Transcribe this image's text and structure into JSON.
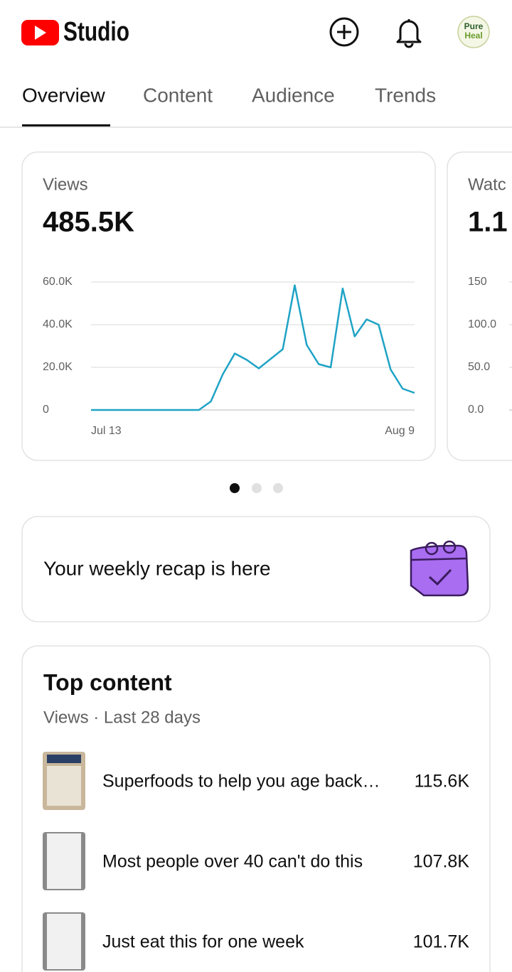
{
  "header": {
    "app_name": "Studio",
    "avatar": [
      "Pure",
      "Heal"
    ]
  },
  "tabs": [
    "Overview",
    "Content",
    "Audience",
    "Trends"
  ],
  "chart_data": [
    {
      "type": "line",
      "title": "Views",
      "subtitle": "485.5K",
      "categories": [
        "Jul 13",
        null,
        null,
        null,
        null,
        null,
        null,
        null,
        null,
        null,
        null,
        null,
        null,
        null,
        null,
        null,
        null,
        null,
        null,
        null,
        null,
        null,
        null,
        null,
        null,
        null,
        null,
        "Aug 9"
      ],
      "series": [
        {
          "color": "#1fa3c5",
          "values": [
            0,
            0,
            0,
            0,
            0,
            0,
            0,
            0,
            0,
            0,
            4000,
            16800,
            26500,
            23500,
            19500,
            24000,
            28500,
            58500,
            30500,
            21500,
            20000,
            57000,
            34500,
            42500,
            40000,
            19000,
            10000,
            8000
          ]
        }
      ],
      "ylim": [
        0,
        60000
      ],
      "yticks": [
        0,
        {
          "value": 20000,
          "label": "20.0K"
        },
        {
          "value": 40000,
          "label": "40.0K"
        },
        {
          "value": 60000,
          "label": "60.0K"
        }
      ],
      "grid": true
    },
    {
      "type": "line",
      "title": "Watc",
      "subtitle": "1.1",
      "ylim": [
        0,
        150
      ],
      "yticks": [
        {
          "value": 0,
          "label": "0.0"
        },
        {
          "value": 50,
          "label": "50.0"
        },
        {
          "value": 100,
          "label": "100.0"
        },
        150
      ],
      "grid": true
    }
  ],
  "recap": {
    "text": "Your weekly recap is here"
  },
  "top_content": {
    "title": "Top content",
    "subtitle": "Views · Last 28 days",
    "items": [
      {
        "title": "Superfoods to help you age back…",
        "views": "115.6K"
      },
      {
        "title": "Most people over 40 can't do this",
        "views": "107.8K"
      },
      {
        "title": "Just eat this for one week",
        "views": "101.7K"
      }
    ]
  }
}
